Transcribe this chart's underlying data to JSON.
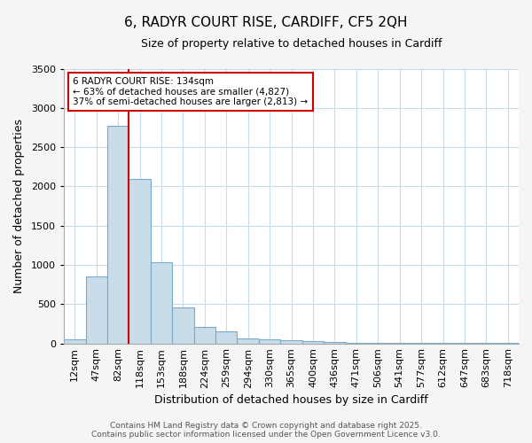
{
  "title_line1": "6, RADYR COURT RISE, CARDIFF, CF5 2QH",
  "title_line2": "Size of property relative to detached houses in Cardiff",
  "xlabel": "Distribution of detached houses by size in Cardiff",
  "ylabel": "Number of detached properties",
  "categories": [
    "12sqm",
    "47sqm",
    "82sqm",
    "118sqm",
    "153sqm",
    "188sqm",
    "224sqm",
    "259sqm",
    "294sqm",
    "330sqm",
    "365sqm",
    "400sqm",
    "436sqm",
    "471sqm",
    "506sqm",
    "541sqm",
    "577sqm",
    "612sqm",
    "647sqm",
    "683sqm",
    "718sqm"
  ],
  "values": [
    55,
    850,
    2770,
    2100,
    1030,
    455,
    210,
    150,
    65,
    50,
    38,
    25,
    18,
    8,
    5,
    4,
    3,
    2,
    2,
    1,
    1
  ],
  "bar_color": "#c8dcea",
  "bar_edge_color": "#7aaac8",
  "vline_color": "#cc0000",
  "vline_position": 3,
  "ylim": [
    0,
    3500
  ],
  "yticks": [
    0,
    500,
    1000,
    1500,
    2000,
    2500,
    3000,
    3500
  ],
  "annotation_title": "6 RADYR COURT RISE: 134sqm",
  "annotation_line2": "← 63% of detached houses are smaller (4,827)",
  "annotation_line3": "37% of semi-detached houses are larger (2,813) →",
  "annotation_box_color": "#cc0000",
  "footer_line1": "Contains HM Land Registry data © Crown copyright and database right 2025.",
  "footer_line2": "Contains public sector information licensed under the Open Government Licence v3.0.",
  "fig_bg_color": "#f5f5f5",
  "plot_bg_color": "#ffffff",
  "grid_color": "#c8dcea",
  "title1_fontsize": 11,
  "title2_fontsize": 9,
  "tick_fontsize": 8,
  "axis_label_fontsize": 9
}
